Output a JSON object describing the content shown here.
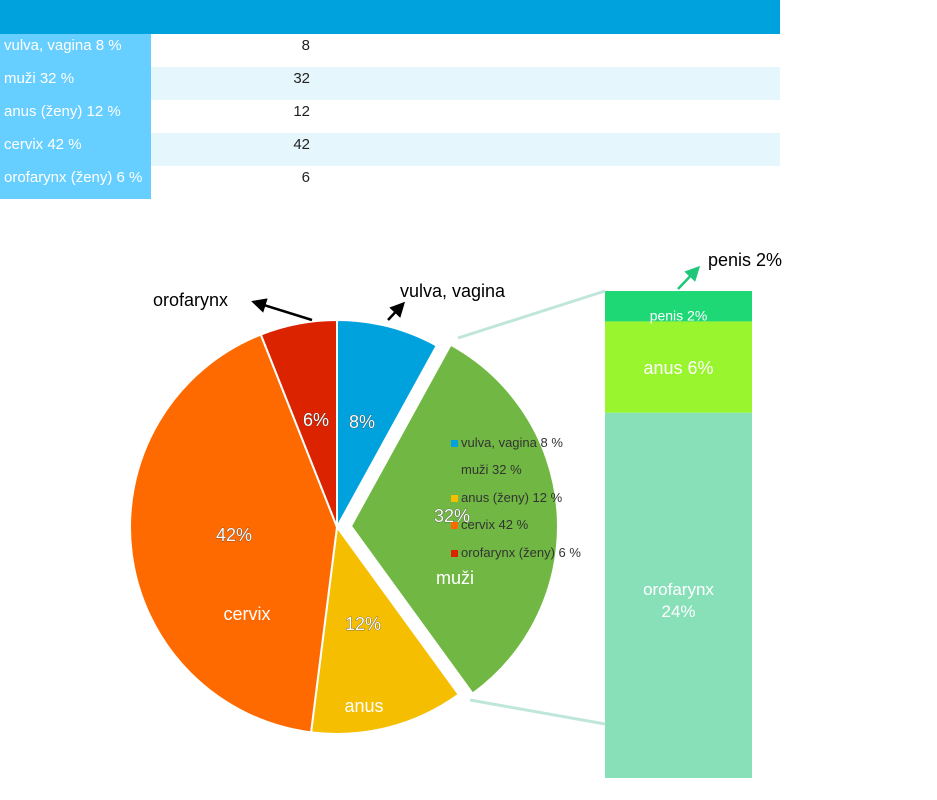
{
  "table": {
    "rows": [
      {
        "label": "vulva, vagina 8 %",
        "value": "8"
      },
      {
        "label": "muži 32 %",
        "value": "32"
      },
      {
        "label": "anus (ženy) 12 %",
        "value": "12"
      },
      {
        "label": "cervix 42 %",
        "value": "42"
      },
      {
        "label": "orofarynx (ženy) 6 %",
        "value": "6"
      }
    ]
  },
  "chart_data": {
    "type": "pie",
    "slices": [
      {
        "pct_label": "8%",
        "value": 8,
        "color": "#00a2dd",
        "callout": "vulva, vagina"
      },
      {
        "pct_label": "32%",
        "value": 32,
        "color": "#70b843",
        "callout": "muži",
        "exploded": true
      },
      {
        "pct_label": "12%",
        "value": 12,
        "color": "#f5be00",
        "callout": "anus"
      },
      {
        "pct_label": "42%",
        "value": 42,
        "color": "#ff6a00",
        "callout": "cervix"
      },
      {
        "pct_label": "6%",
        "value": 6,
        "color": "#dc2300",
        "callout": "orofarynx"
      }
    ],
    "legend": [
      {
        "label": "vulva, vagina 8 %",
        "color": "#00a2dd"
      },
      {
        "label": "muži 32 %",
        "color": "#70b843"
      },
      {
        "label": "anus (ženy) 12 %",
        "color": "#f5be00"
      },
      {
        "label": "cervix 42 %",
        "color": "#ff6a00"
      },
      {
        "label": "orofarynx (ženy) 6 %",
        "color": "#dc2300"
      }
    ],
    "breakdown": {
      "segments": [
        {
          "label": "penis 2%",
          "value": 2,
          "color": "#1ed876"
        },
        {
          "label": "anus 6%",
          "value": 6,
          "color": "#99f52e"
        },
        {
          "label": "orofarynx",
          "label2": "24%",
          "value": 24,
          "color": "#88e0b8"
        }
      ],
      "external_label": "penis 2%"
    }
  }
}
